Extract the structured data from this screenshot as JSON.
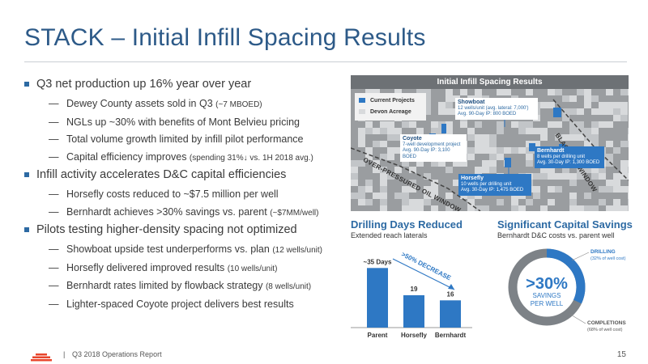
{
  "title": "STACK – Initial Infill Spacing Results",
  "bullets": [
    {
      "text": "Q3 net production up 16% year over year",
      "subs": [
        {
          "main": "Dewey County assets sold in Q3 ",
          "small": "(~7 MBOED)"
        },
        {
          "main": "NGLs up ~30% with benefits of Mont Belvieu pricing",
          "small": ""
        },
        {
          "main": "Total volume growth limited by infill pilot performance",
          "small": ""
        },
        {
          "main": "Capital efficiency improves ",
          "small": "(spending 31%↓ vs. 1H 2018 avg.)"
        }
      ]
    },
    {
      "text": "Infill activity accelerates D&C capital efficiencies",
      "subs": [
        {
          "main": "Horsefly costs reduced to ~$7.5 million per well",
          "small": ""
        },
        {
          "main": "Bernhardt achieves >30% savings vs. parent ",
          "small": "(~$7MM/well)"
        }
      ]
    },
    {
      "text": "Pilots testing higher-density spacing not optimized",
      "subs": [
        {
          "main": "Showboat upside test underperforms vs. plan ",
          "small": "(12 wells/unit)"
        },
        {
          "main": "Horsefly delivered improved results ",
          "small": "(10 wells/unit)"
        },
        {
          "main": "Bernhardt rates limited by flowback strategy ",
          "small": "(8 wells/unit)"
        },
        {
          "main": "Lighter-spaced Coyote project delivers best results",
          "small": ""
        }
      ]
    }
  ],
  "map": {
    "title": "Initial Infill Spacing Results",
    "legend": {
      "current_projects": "Current Projects",
      "devon_acreage": "Devon Acreage"
    },
    "callouts": {
      "showboat": {
        "name": "Showboat",
        "line1": "12 wells/unit (avg. lateral: 7,000')",
        "line2": "Avg. 90-Day IP: 800 BOED"
      },
      "coyote": {
        "name": "Coyote",
        "line1": "7-well development project",
        "line2": "Avg. 90-Day IP: 3,100 BOED"
      },
      "bernhardt": {
        "name": "Bernhardt",
        "line1": "8 wells per drilling unit",
        "line2": "Avg. 30-Day IP: 1,300 BOED"
      },
      "horsefly": {
        "name": "Horsefly",
        "line1": "10 wells per drilling unit",
        "line2": "Avg. 30-Day IP: 1,475 BOED"
      }
    },
    "labels": {
      "black_oil": "BLACK OIL WINDOW",
      "over_pressured": "OVER-PRESSURED OIL WINDOW"
    }
  },
  "drilling": {
    "title": "Drilling Days Reduced",
    "subtitle": "Extended reach laterals",
    "decrease_label": ">50% DECREASE"
  },
  "chart_data": {
    "type": "bar",
    "categories": [
      "Parent",
      "Horsefly",
      "Bernhardt"
    ],
    "values": [
      35,
      19,
      16
    ],
    "data_labels": [
      "~35 Days",
      "19",
      "16"
    ],
    "title": "Drilling Days Reduced",
    "subtitle": "Extended reach laterals",
    "ylim": [
      0,
      38
    ],
    "color": "#2e78c4"
  },
  "savings": {
    "title": "Significant Capital Savings",
    "subtitle": "Bernhardt D&C costs vs. parent well",
    "big": ">30%",
    "line1": "SAVINGS",
    "line2": "PER WELL",
    "drilling_label": "DRILLING",
    "drilling_pct": "(32% of well cost)",
    "completions_label": "COMPLETIONS",
    "completions_pct": "(68% of well cost)",
    "drilling_share": 0.32,
    "colors": {
      "drilling": "#2e78c4",
      "completions": "#7d8287"
    }
  },
  "footer": {
    "separator": "|",
    "text": "Q3 2018 Operations Report",
    "page": "15"
  },
  "colors": {
    "title": "#2d5a88",
    "accent": "#2d6aa3",
    "logo": "#e8452c"
  }
}
